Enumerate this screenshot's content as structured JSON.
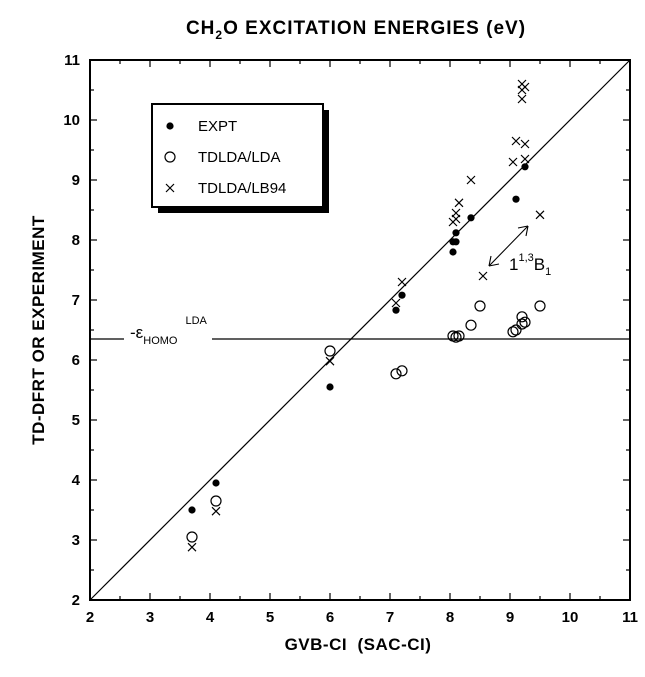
{
  "chart_data": {
    "type": "scatter",
    "title": {
      "pre": "CH",
      "sub": "2",
      "post": "O EXCITATION ENERGIES (eV)"
    },
    "xlabel": "GVB-CI  (SAC-CI)",
    "ylabel": "TD-DFRT OR EXPERIMENT",
    "xlim": [
      2,
      11
    ],
    "ylim": [
      2,
      11
    ],
    "xticks": [
      "2",
      "3",
      "4",
      "5",
      "6",
      "7",
      "8",
      "9",
      "10",
      "11"
    ],
    "yticks": [
      "2",
      "3",
      "4",
      "5",
      "6",
      "7",
      "8",
      "9",
      "10",
      "11"
    ],
    "grid": false,
    "legend_position": "top-left",
    "diagonal": [
      [
        2,
        2
      ],
      [
        11,
        11
      ]
    ],
    "homo_level": 6.35,
    "series": [
      {
        "name": "EXPT",
        "marker": "filled-circle",
        "points": [
          [
            3.7,
            3.5
          ],
          [
            4.1,
            3.95
          ],
          [
            6.0,
            5.55
          ],
          [
            7.1,
            6.83
          ],
          [
            7.2,
            7.08
          ],
          [
            8.05,
            7.97
          ],
          [
            8.1,
            7.97
          ],
          [
            8.1,
            8.12
          ],
          [
            8.05,
            7.8
          ],
          [
            8.35,
            8.37
          ],
          [
            9.1,
            8.68
          ],
          [
            9.25,
            9.22
          ]
        ]
      },
      {
        "name": "TDLDA/LDA",
        "marker": "open-circle",
        "points": [
          [
            3.7,
            3.05
          ],
          [
            4.1,
            3.65
          ],
          [
            6.0,
            6.15
          ],
          [
            7.1,
            5.77
          ],
          [
            7.2,
            5.82
          ],
          [
            8.05,
            6.4
          ],
          [
            8.1,
            6.38
          ],
          [
            8.15,
            6.4
          ],
          [
            8.35,
            6.58
          ],
          [
            8.5,
            6.9
          ],
          [
            9.05,
            6.47
          ],
          [
            9.1,
            6.5
          ],
          [
            9.2,
            6.6
          ],
          [
            9.2,
            6.72
          ],
          [
            9.25,
            6.63
          ],
          [
            9.5,
            6.9
          ]
        ]
      },
      {
        "name": "TDLDA/LB94",
        "marker": "cross",
        "points": [
          [
            3.7,
            2.88
          ],
          [
            4.1,
            3.48
          ],
          [
            6.0,
            5.98
          ],
          [
            7.1,
            6.95
          ],
          [
            7.2,
            7.3
          ],
          [
            8.05,
            8.3
          ],
          [
            8.1,
            8.45
          ],
          [
            8.1,
            8.35
          ],
          [
            8.15,
            8.62
          ],
          [
            8.35,
            9.0
          ],
          [
            8.55,
            7.4
          ],
          [
            9.05,
            9.3
          ],
          [
            9.1,
            9.65
          ],
          [
            9.2,
            10.35
          ],
          [
            9.2,
            10.5
          ],
          [
            9.2,
            10.6
          ],
          [
            9.25,
            10.55
          ],
          [
            9.25,
            9.35
          ],
          [
            9.25,
            9.6
          ],
          [
            9.5,
            8.42
          ]
        ]
      }
    ],
    "annotations": [
      {
        "id": "homo",
        "pre": "-ε",
        "sub": "HOMO",
        "sup": "LDA"
      },
      {
        "id": "b1",
        "base": "1",
        "sup": "1,3",
        "main": "B",
        "sub": "1"
      }
    ]
  }
}
